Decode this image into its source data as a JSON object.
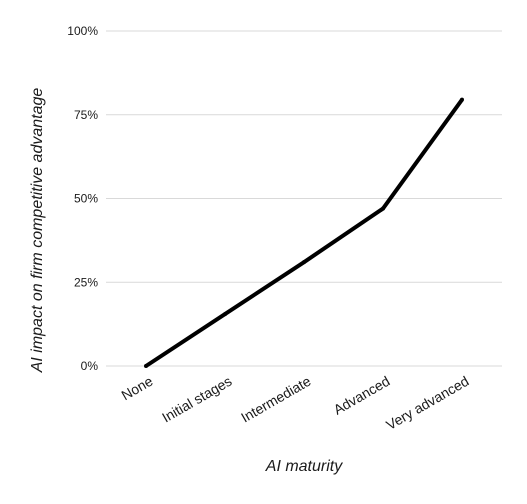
{
  "chart_data": {
    "type": "line",
    "title": "",
    "xlabel": "AI maturity",
    "ylabel": "AI impact on firm competitive advantage",
    "categories": [
      "None",
      "Initial stages",
      "Intermediate",
      "Advanced",
      "Very advanced"
    ],
    "series": [
      {
        "values": [
          0,
          15.5,
          31,
          47,
          79.5
        ],
        "color": "#000000"
      }
    ],
    "ylim": [
      0,
      100
    ],
    "yticks": [
      {
        "value": 0,
        "label": "0%"
      },
      {
        "value": 25,
        "label": "25%"
      },
      {
        "value": 50,
        "label": "50%"
      },
      {
        "value": 75,
        "label": "75%"
      },
      {
        "value": 100,
        "label": "100%"
      }
    ],
    "grid": true,
    "legend": "none",
    "grid_color": "#d9d9d9"
  }
}
